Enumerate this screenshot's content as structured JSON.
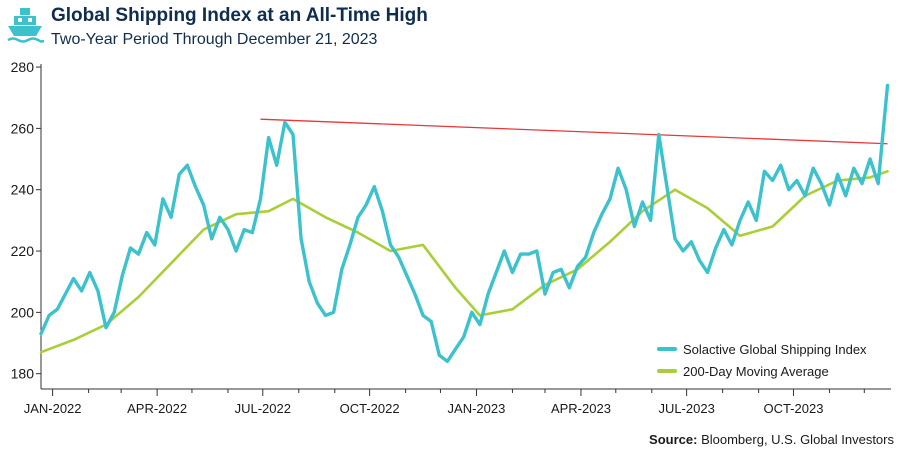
{
  "header": {
    "title": "Global Shipping Index at an All-Time High",
    "subtitle": "Two-Year Period Through December 21, 2023",
    "icon": "ship-icon"
  },
  "source": {
    "label": "Source:",
    "text": "Bloomberg, U.S. Global Investors"
  },
  "colors": {
    "index": "#3cc2cc",
    "moving_average": "#a9cf38",
    "trendline": "#e8383a",
    "axis": "#333333"
  },
  "chart_data": {
    "type": "line",
    "title": "Global Shipping Index at an All-Time High",
    "subtitle": "Two-Year Period Through December 21, 2023",
    "x_ticks": [
      "JAN-2022",
      "APR-2022",
      "JUL-2022",
      "OCT-2022",
      "JAN-2023",
      "APR-2023",
      "JUL-2023",
      "OCT-2023"
    ],
    "y_ticks": [
      180,
      200,
      220,
      240,
      260,
      280
    ],
    "ylim": [
      175,
      281
    ],
    "xlim": [
      "2021-12-22",
      "2023-12-24"
    ],
    "grid": false,
    "legend_position": "bottom-right",
    "series": [
      {
        "name": "Solactive Global Shipping Index",
        "points": [
          [
            "2021-12-22",
            193
          ],
          [
            "2021-12-29",
            199
          ],
          [
            "2022-01-05",
            201
          ],
          [
            "2022-01-12",
            206
          ],
          [
            "2022-01-19",
            211
          ],
          [
            "2022-01-26",
            207
          ],
          [
            "2022-02-02",
            213
          ],
          [
            "2022-02-09",
            207
          ],
          [
            "2022-02-16",
            195
          ],
          [
            "2022-02-23",
            200
          ],
          [
            "2022-03-02",
            212
          ],
          [
            "2022-03-09",
            221
          ],
          [
            "2022-03-16",
            219
          ],
          [
            "2022-03-23",
            226
          ],
          [
            "2022-03-30",
            222
          ],
          [
            "2022-04-06",
            237
          ],
          [
            "2022-04-13",
            231
          ],
          [
            "2022-04-20",
            245
          ],
          [
            "2022-04-27",
            248
          ],
          [
            "2022-05-04",
            241
          ],
          [
            "2022-05-11",
            235
          ],
          [
            "2022-05-18",
            224
          ],
          [
            "2022-05-25",
            231
          ],
          [
            "2022-06-01",
            227
          ],
          [
            "2022-06-08",
            220
          ],
          [
            "2022-06-15",
            227
          ],
          [
            "2022-06-22",
            226
          ],
          [
            "2022-06-29",
            237
          ],
          [
            "2022-07-06",
            257
          ],
          [
            "2022-07-13",
            248
          ],
          [
            "2022-07-20",
            262
          ],
          [
            "2022-07-27",
            258
          ],
          [
            "2022-08-03",
            224
          ],
          [
            "2022-08-10",
            210
          ],
          [
            "2022-08-17",
            203
          ],
          [
            "2022-08-24",
            199
          ],
          [
            "2022-08-31",
            200
          ],
          [
            "2022-09-07",
            214
          ],
          [
            "2022-09-14",
            222
          ],
          [
            "2022-09-21",
            231
          ],
          [
            "2022-09-28",
            235
          ],
          [
            "2022-10-05",
            241
          ],
          [
            "2022-10-12",
            233
          ],
          [
            "2022-10-19",
            222
          ],
          [
            "2022-10-26",
            218
          ],
          [
            "2022-11-02",
            212
          ],
          [
            "2022-11-09",
            206
          ],
          [
            "2022-11-16",
            199
          ],
          [
            "2022-11-23",
            197
          ],
          [
            "2022-11-30",
            186
          ],
          [
            "2022-12-07",
            184
          ],
          [
            "2022-12-14",
            188
          ],
          [
            "2022-12-21",
            192
          ],
          [
            "2022-12-28",
            200
          ],
          [
            "2023-01-04",
            196
          ],
          [
            "2023-01-11",
            206
          ],
          [
            "2023-01-18",
            213
          ],
          [
            "2023-01-25",
            220
          ],
          [
            "2023-02-01",
            213
          ],
          [
            "2023-02-08",
            219
          ],
          [
            "2023-02-15",
            219
          ],
          [
            "2023-02-22",
            220
          ],
          [
            "2023-03-01",
            206
          ],
          [
            "2023-03-08",
            213
          ],
          [
            "2023-03-15",
            214
          ],
          [
            "2023-03-22",
            208
          ],
          [
            "2023-03-29",
            215
          ],
          [
            "2023-04-05",
            218
          ],
          [
            "2023-04-12",
            226
          ],
          [
            "2023-04-19",
            232
          ],
          [
            "2023-04-26",
            237
          ],
          [
            "2023-05-03",
            247
          ],
          [
            "2023-05-10",
            240
          ],
          [
            "2023-05-17",
            228
          ],
          [
            "2023-05-24",
            236
          ],
          [
            "2023-05-31",
            230
          ],
          [
            "2023-06-07",
            258
          ],
          [
            "2023-06-14",
            241
          ],
          [
            "2023-06-21",
            224
          ],
          [
            "2023-06-28",
            220
          ],
          [
            "2023-07-05",
            223
          ],
          [
            "2023-07-12",
            217
          ],
          [
            "2023-07-19",
            213
          ],
          [
            "2023-07-26",
            221
          ],
          [
            "2023-08-02",
            227
          ],
          [
            "2023-08-09",
            222
          ],
          [
            "2023-08-16",
            230
          ],
          [
            "2023-08-23",
            236
          ],
          [
            "2023-08-30",
            230
          ],
          [
            "2023-09-06",
            246
          ],
          [
            "2023-09-13",
            243
          ],
          [
            "2023-09-20",
            248
          ],
          [
            "2023-09-27",
            240
          ],
          [
            "2023-10-04",
            243
          ],
          [
            "2023-10-11",
            238
          ],
          [
            "2023-10-18",
            247
          ],
          [
            "2023-10-25",
            242
          ],
          [
            "2023-11-01",
            235
          ],
          [
            "2023-11-08",
            245
          ],
          [
            "2023-11-15",
            238
          ],
          [
            "2023-11-22",
            247
          ],
          [
            "2023-11-29",
            242
          ],
          [
            "2023-12-06",
            250
          ],
          [
            "2023-12-13",
            242
          ],
          [
            "2023-12-18",
            262
          ],
          [
            "2023-12-21",
            274
          ]
        ]
      },
      {
        "name": "200-Day Moving Average",
        "points": [
          [
            "2021-12-22",
            187
          ],
          [
            "2022-01-19",
            191
          ],
          [
            "2022-02-16",
            196
          ],
          [
            "2022-03-16",
            205
          ],
          [
            "2022-04-13",
            216
          ],
          [
            "2022-05-11",
            227
          ],
          [
            "2022-06-08",
            232
          ],
          [
            "2022-07-06",
            233
          ],
          [
            "2022-07-27",
            237
          ],
          [
            "2022-08-24",
            231
          ],
          [
            "2022-09-21",
            226
          ],
          [
            "2022-10-19",
            220
          ],
          [
            "2022-11-16",
            222
          ],
          [
            "2022-12-14",
            208
          ],
          [
            "2023-01-04",
            199
          ],
          [
            "2023-02-01",
            201
          ],
          [
            "2023-03-01",
            209
          ],
          [
            "2023-03-29",
            214
          ],
          [
            "2023-04-26",
            223
          ],
          [
            "2023-05-24",
            233
          ],
          [
            "2023-06-21",
            240
          ],
          [
            "2023-07-19",
            234
          ],
          [
            "2023-08-16",
            225
          ],
          [
            "2023-09-13",
            228
          ],
          [
            "2023-10-11",
            238
          ],
          [
            "2023-11-08",
            243
          ],
          [
            "2023-12-06",
            244
          ],
          [
            "2023-12-21",
            246
          ]
        ]
      }
    ],
    "annotations": [
      {
        "type": "trendline",
        "from": [
          "2022-06-29",
          263
        ],
        "to": [
          "2023-12-21",
          255
        ]
      }
    ]
  }
}
